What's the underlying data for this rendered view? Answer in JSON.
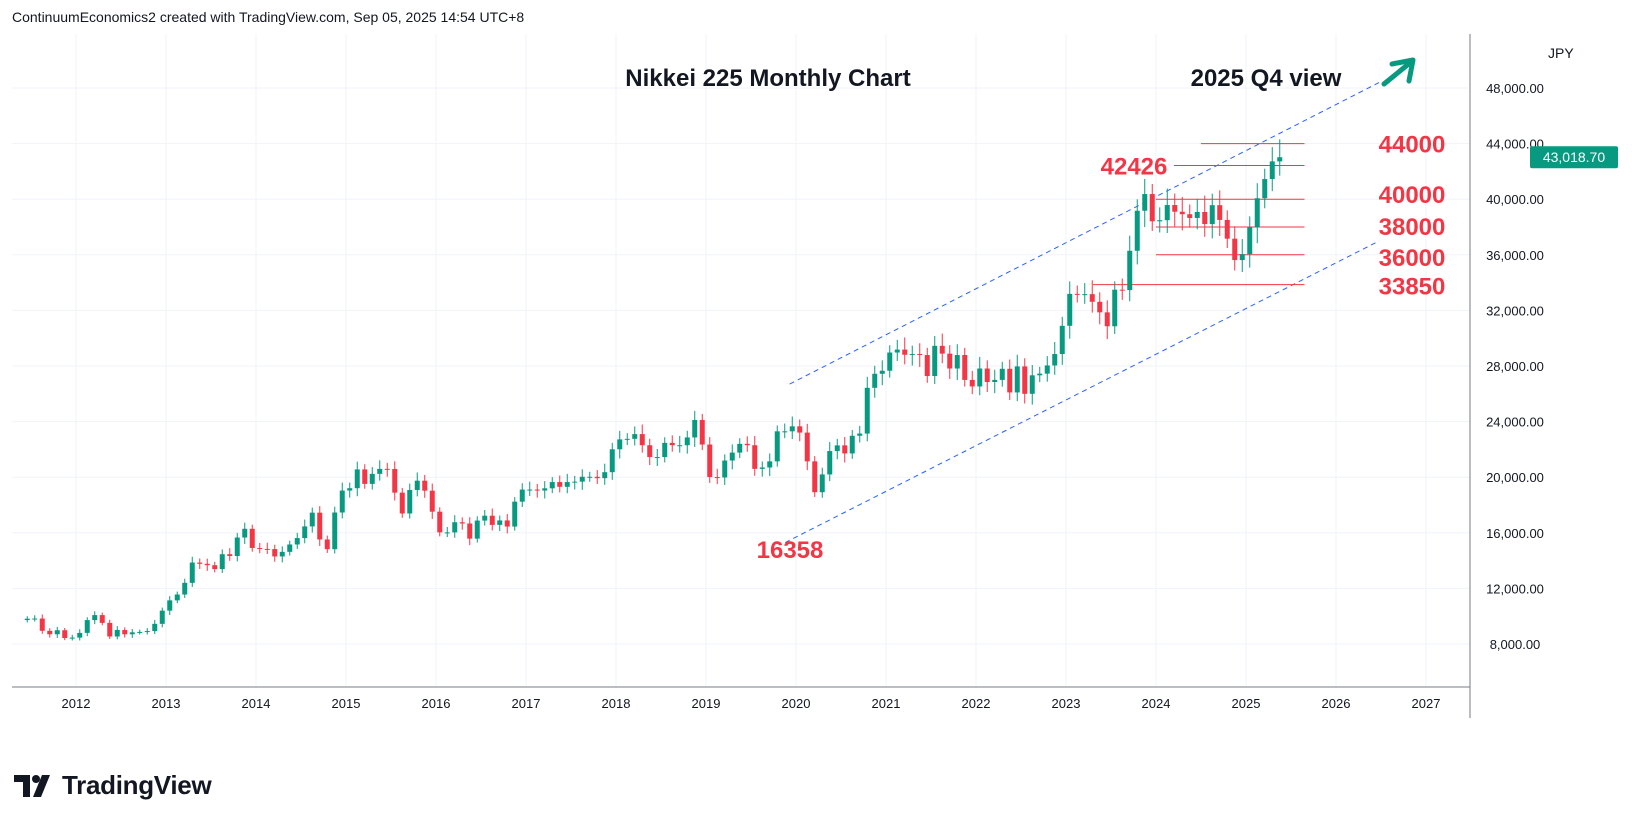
{
  "header": {
    "text": "ContinuumEconomics2 created with TradingView.com, Sep 05, 2025 14:54 UTC+8"
  },
  "branding": {
    "logo_text": "TradingView"
  },
  "colors": {
    "up": "#089981",
    "down": "#f23645",
    "level": "#f23645",
    "channel": "#2962ff",
    "grid": "#f0f3fa",
    "text": "#131722",
    "price_badge": "#089981"
  },
  "chart_data": {
    "type": "candlestick",
    "title": "Nikkei 225 Monthly Chart",
    "subtitle": "2025 Q4 view",
    "currency": "JPY",
    "last_price": 43018.7,
    "last_price_label": "43,018.70",
    "x_tick_labels": [
      "2012",
      "2013",
      "2014",
      "2015",
      "2016",
      "2017",
      "2018",
      "2019",
      "2020",
      "2021",
      "2022",
      "2023",
      "2024",
      "2025",
      "2026",
      "2027"
    ],
    "y_tick_labels": [
      "8,000.00",
      "12,000.00",
      "16,000.00",
      "20,000.00",
      "24,000.00",
      "28,000.00",
      "32,000.00",
      "36,000.00",
      "40,000.00",
      "44,000.00",
      "48,000.00"
    ],
    "y_ticks": [
      8000,
      12000,
      16000,
      20000,
      24000,
      28000,
      32000,
      36000,
      40000,
      44000,
      48000
    ],
    "x_range": [
      2011.4,
      2027.5
    ],
    "y_range": [
      5000,
      50500
    ],
    "grid": true,
    "start_month": "2011-06",
    "monthly_closes": [
      9820,
      9830,
      8950,
      8700,
      8990,
      8430,
      8460,
      8800,
      9720,
      10080,
      9520,
      8540,
      9010,
      8700,
      8840,
      8870,
      8930,
      9450,
      10400,
      11140,
      11560,
      12400,
      13860,
      13770,
      13670,
      13390,
      14460,
      14330,
      15660,
      16290,
      14910,
      14840,
      14830,
      14300,
      14630,
      15160,
      15620,
      16460,
      17450,
      15520,
      14820,
      17460,
      19040,
      19210,
      20560,
      19520,
      20240,
      20600,
      20590,
      18890,
      17390,
      19080,
      19750,
      19030,
      17520,
      16030,
      16030,
      16760,
      16670,
      15580,
      16880,
      17230,
      16570,
      16890,
      16450,
      18240,
      19110,
      19110,
      19040,
      19200,
      19650,
      19310,
      19650,
      19680,
      20030,
      20030,
      19930,
      20360,
      22010,
      22720,
      22760,
      23100,
      22300,
      21450,
      21450,
      22470,
      22300,
      22300,
      22860,
      24120,
      22350,
      20010,
      19980,
      21200,
      21770,
      22400,
      22300,
      20600,
      20700,
      21140,
      23300,
      23300,
      23660,
      23210,
      21140,
      18920,
      20200,
      21880,
      22290,
      21710,
      22980,
      23140,
      26430,
      27440,
      27660,
      28970,
      29180,
      28810,
      28860,
      28790,
      27280,
      29450,
      28890,
      27820,
      28790,
      27000,
      26530,
      27820,
      26850,
      27000,
      27800,
      26100,
      27970,
      26000,
      27330,
      27450,
      28040,
      28860,
      30890,
      33190,
      33170,
      33170,
      32620,
      31860,
      30860,
      33490,
      33460,
      36290,
      39170,
      40370,
      38410,
      38490,
      39580,
      39100,
      38920,
      38650,
      39080,
      38210,
      39570,
      38510,
      37160,
      35620,
      36050,
      37970,
      40070,
      41450,
      42720,
      43018.7
    ],
    "levels": [
      {
        "label": "44000",
        "value": 44000
      },
      {
        "label": "42426",
        "value": 42426
      },
      {
        "label": "40000",
        "value": 40000
      },
      {
        "label": "38000",
        "value": 38000
      },
      {
        "label": "36000",
        "value": 36000
      },
      {
        "label": "33850",
        "value": 33850
      },
      {
        "label": "16358",
        "value": 16358
      }
    ],
    "channel": {
      "upper": [
        [
          2019.93,
          26700
        ],
        [
          2026.48,
          48400
        ]
      ],
      "lower": [
        [
          2019.88,
          15300
        ],
        [
          2026.48,
          37000
        ]
      ]
    }
  }
}
